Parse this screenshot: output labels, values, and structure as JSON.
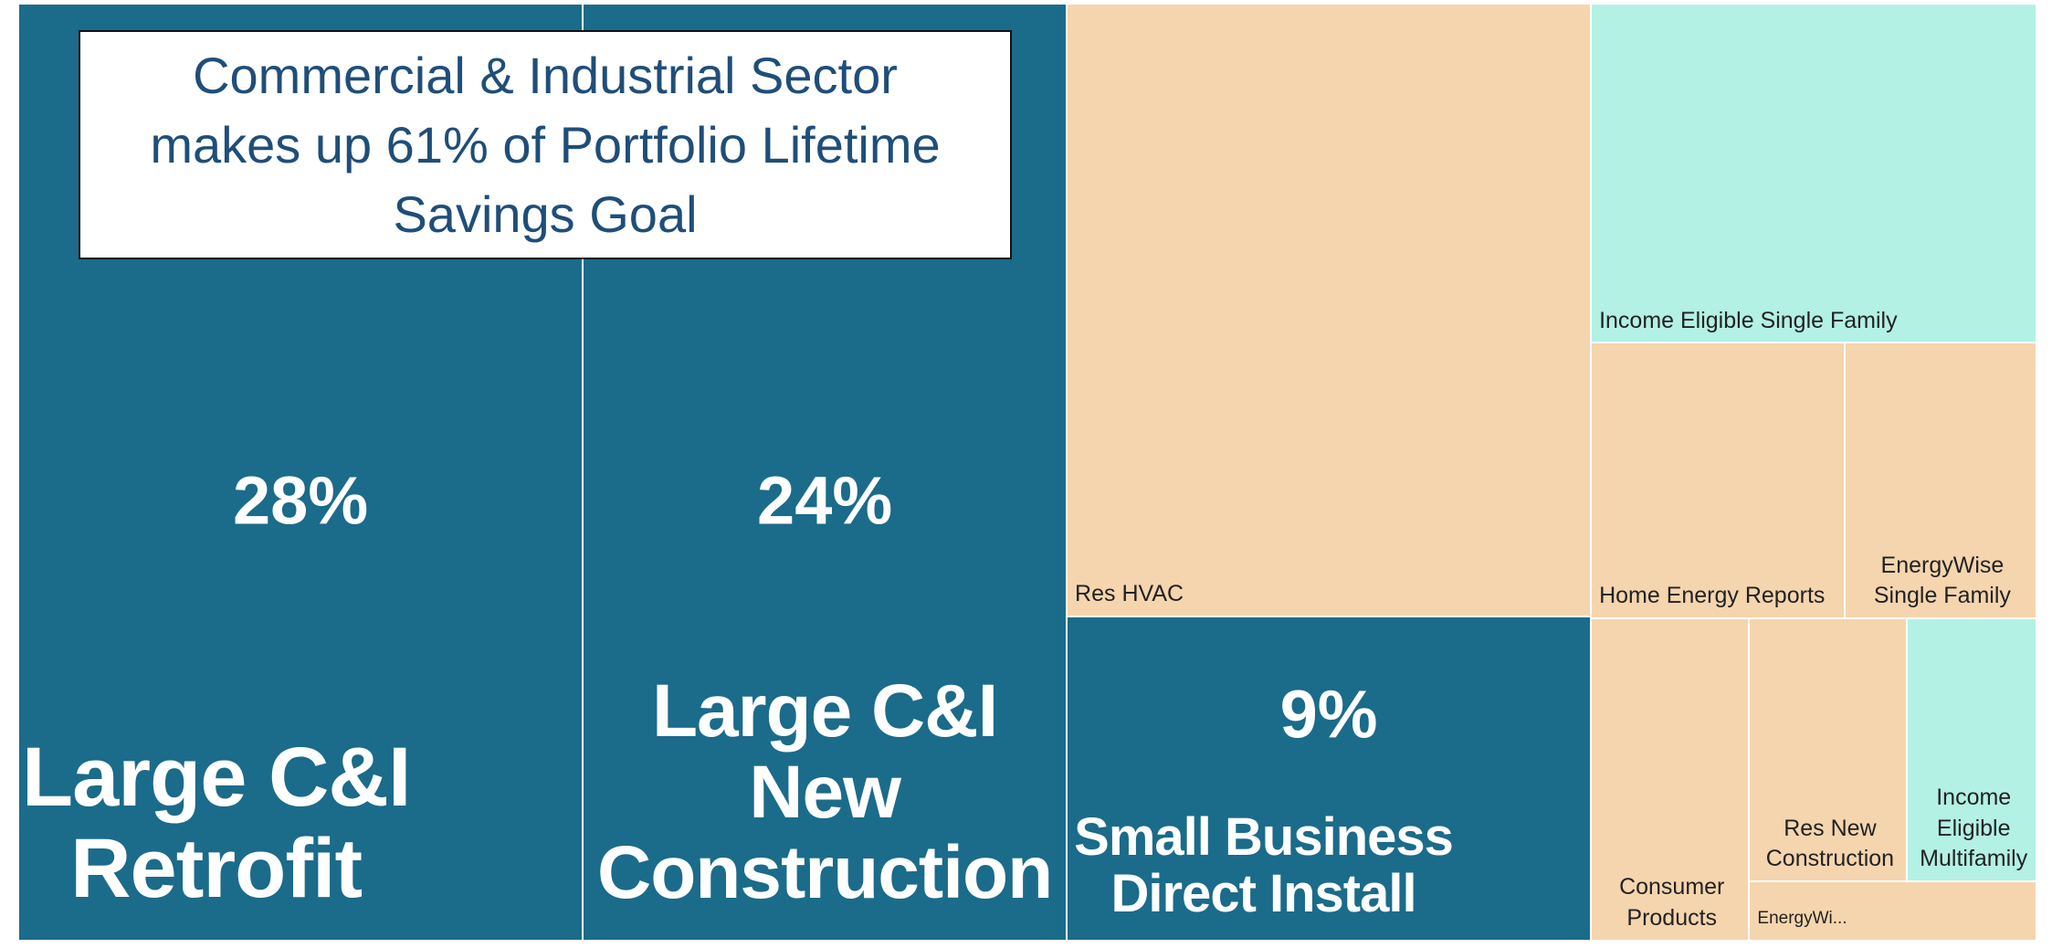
{
  "chart_data": {
    "type": "treemap",
    "title": "Commercial & Industrial Sector makes up 61% of Portfolio Lifetime Savings Goal",
    "categories": [
      "Large C&I Retrofit",
      "Large C&I New Construction",
      "Res HVAC",
      "Small Business Direct Install",
      "Income Eligible Single Family",
      "Home Energy Reports",
      "EnergyWise Single Family",
      "Consumer Products",
      "Res New Construction",
      "Income Eligible Multifamily",
      "EnergyWi..."
    ],
    "values": [
      28,
      24,
      17,
      9,
      8,
      3.7,
      2.8,
      2.7,
      2.2,
      1.8,
      0.9
    ],
    "value_labels": [
      "28%",
      "24%",
      null,
      "9%",
      null,
      null,
      null,
      null,
      null,
      null,
      null
    ],
    "colors": [
      "#1b6b8a",
      "#1b6b8a",
      "#f5d5ae",
      "#1b6b8a",
      "#b3f1e4",
      "#f5d5ae",
      "#f5d5ae",
      "#f5d5ae",
      "#f5d5ae",
      "#b3f1e4",
      "#f5d5ae"
    ]
  }
}
